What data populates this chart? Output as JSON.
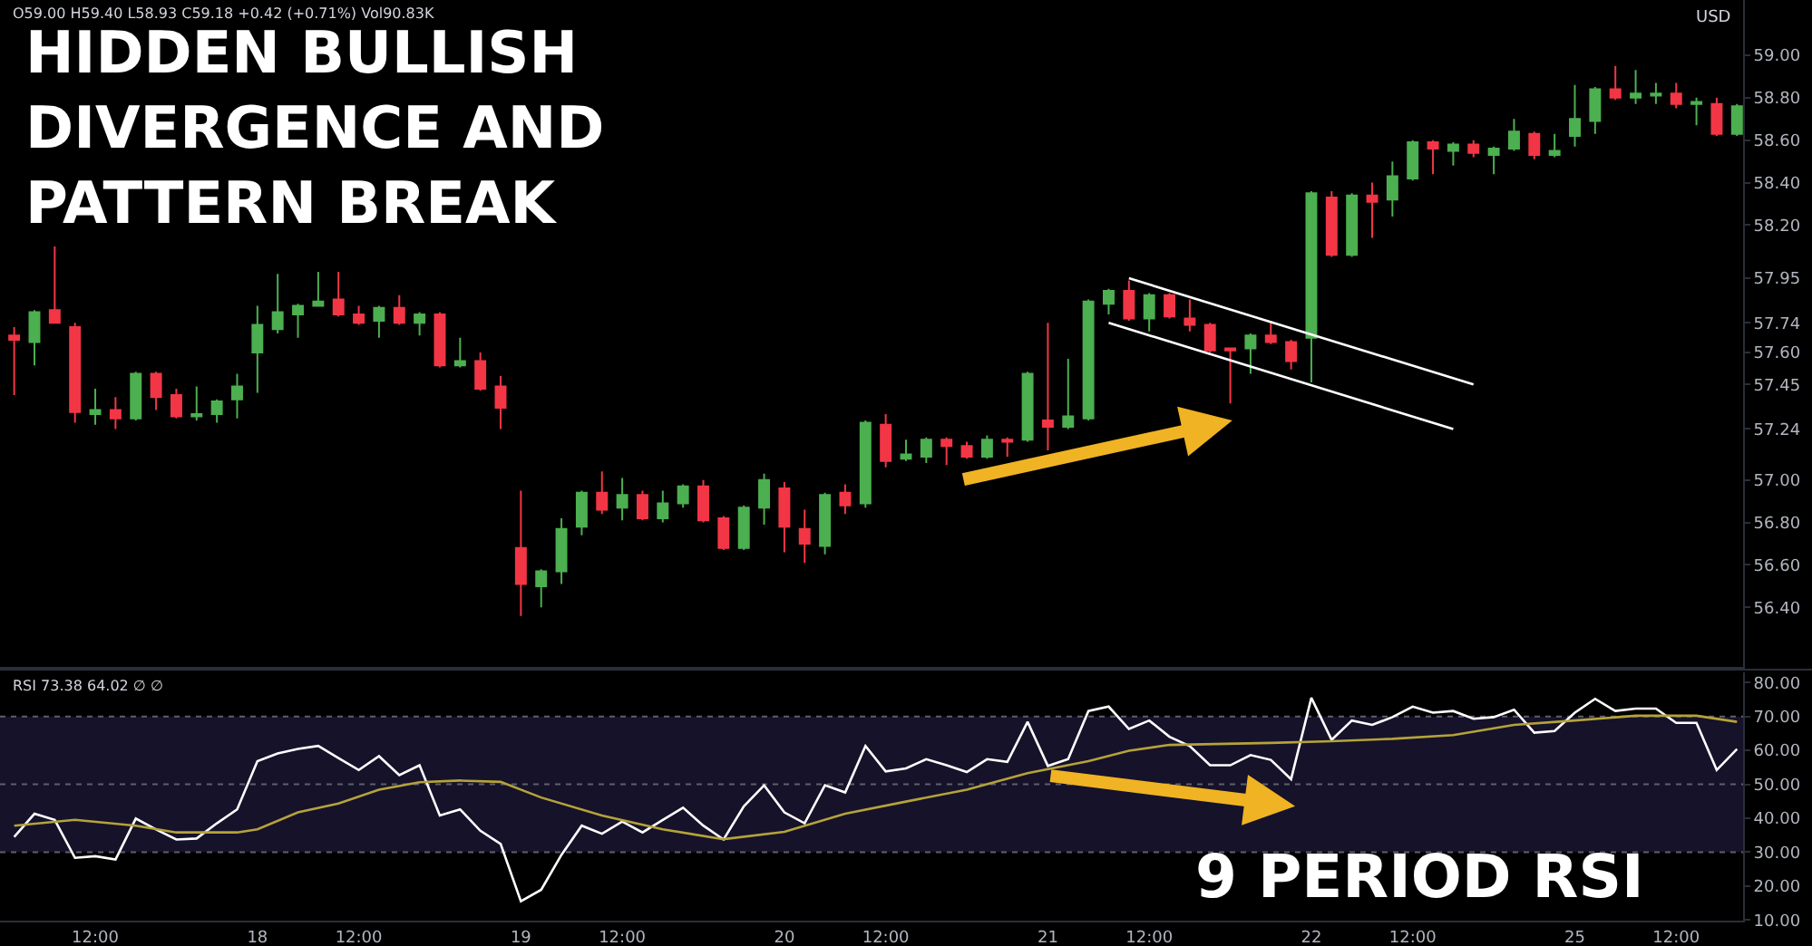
{
  "chart_data": [
    {
      "type": "candlestick",
      "title": "HIDDEN BULLISH\nDIVERGENCE AND\nPATTERN BREAK",
      "annotations": [
        "O59.00 H59.40 L58.93 C59.18 +0.42 (+0.71%) Vol90.83K",
        "USD"
      ],
      "categories": [
        null,
        null,
        null,
        null,
        null,
        null,
        null,
        null,
        null,
        null,
        null,
        null,
        null,
        null,
        null,
        null,
        null,
        null,
        null,
        null,
        null,
        null,
        null,
        null,
        null,
        null,
        null,
        null,
        null,
        null,
        null,
        null,
        null,
        null,
        null,
        null,
        null,
        null,
        null,
        null,
        null,
        null,
        null,
        null,
        null,
        null,
        null,
        null,
        null,
        null,
        null,
        null,
        null,
        null,
        null,
        null,
        null,
        null,
        null,
        null,
        null,
        null,
        null,
        null,
        null,
        null,
        null,
        null,
        null,
        null,
        null,
        null,
        null,
        null,
        null,
        null,
        null,
        null,
        null,
        null,
        null,
        null,
        null,
        null,
        null,
        null
      ],
      "colors": [
        "#f23645",
        "#4caf50",
        "#f23645",
        "#f23645",
        "#4caf50",
        "#f23645",
        "#4caf50",
        "#f23645",
        "#f23645",
        "#4caf50",
        "#4caf50",
        "#4caf50",
        "#4caf50",
        "#4caf50",
        "#4caf50",
        "#4caf50",
        "#f23645",
        "#f23645",
        "#4caf50",
        "#f23645",
        "#4caf50",
        "#f23645",
        "#4caf50",
        "#f23645",
        "#f23645",
        "#f23645",
        "#4caf50",
        "#4caf50",
        "#4caf50",
        "#f23645",
        "#4caf50",
        "#f23645",
        "#4caf50",
        "#4caf50",
        "#f23645",
        "#f23645",
        "#4caf50",
        "#4caf50",
        "#f23645",
        "#f23645",
        "#4caf50",
        "#f23645",
        "#4caf50",
        "#f23645",
        "#4caf50",
        "#4caf50",
        "#f23645",
        "#f23645",
        "#4caf50",
        "#f23645",
        "#4caf50",
        "#f23645",
        "#4caf50",
        "#4caf50",
        "#4caf50",
        "#f23645",
        "#4caf50",
        "#f23645",
        "#f23645",
        "#f23645",
        "#f23645",
        "#4caf50",
        "#f23645",
        "#f23645",
        "#4caf50",
        "#f23645",
        "#4caf50",
        "#f23645",
        "#4caf50",
        "#4caf50",
        "#f23645",
        "#4caf50",
        "#f23645",
        "#4caf50",
        "#4caf50",
        "#f23645",
        "#4caf50",
        "#4caf50",
        "#4caf50",
        "#f23645",
        "#4caf50",
        "#4caf50",
        "#f23645",
        "#4caf50",
        "#f23645",
        "#4caf50"
      ],
      "ohlc": [
        [
          57.68,
          57.72,
          57.4,
          57.66
        ],
        [
          57.65,
          57.8,
          57.54,
          57.79
        ],
        [
          57.8,
          58.1,
          57.74,
          57.74
        ],
        [
          57.72,
          57.74,
          57.27,
          57.32
        ],
        [
          57.31,
          57.43,
          57.26,
          57.33
        ],
        [
          57.33,
          57.39,
          57.24,
          57.29
        ],
        [
          57.29,
          57.51,
          57.28,
          57.5
        ],
        [
          57.5,
          57.51,
          57.33,
          57.39
        ],
        [
          57.4,
          57.43,
          57.29,
          57.3
        ],
        [
          57.3,
          57.44,
          57.28,
          57.31
        ],
        [
          57.31,
          57.38,
          57.27,
          57.37
        ],
        [
          57.38,
          57.5,
          57.29,
          57.44
        ],
        [
          57.6,
          57.82,
          57.41,
          57.73
        ],
        [
          57.71,
          57.97,
          57.69,
          57.79
        ],
        [
          57.78,
          57.83,
          57.67,
          57.82
        ],
        [
          57.82,
          57.98,
          57.82,
          57.84
        ],
        [
          57.85,
          57.98,
          57.77,
          57.78
        ],
        [
          57.78,
          57.82,
          57.73,
          57.74
        ],
        [
          57.75,
          57.82,
          57.67,
          57.81
        ],
        [
          57.81,
          57.87,
          57.73,
          57.74
        ],
        [
          57.74,
          57.79,
          57.68,
          57.78
        ],
        [
          57.78,
          57.79,
          57.53,
          57.54
        ],
        [
          57.54,
          57.67,
          57.53,
          57.56
        ],
        [
          57.56,
          57.6,
          57.42,
          57.43
        ],
        [
          57.44,
          57.49,
          57.24,
          57.34
        ],
        [
          56.68,
          56.95,
          56.36,
          56.51
        ],
        [
          56.5,
          56.58,
          56.4,
          56.57
        ],
        [
          56.57,
          56.82,
          56.51,
          56.77
        ],
        [
          56.78,
          56.95,
          56.74,
          56.94
        ],
        [
          56.94,
          57.04,
          56.84,
          56.86
        ],
        [
          56.87,
          57.01,
          56.81,
          56.93
        ],
        [
          56.93,
          56.95,
          56.81,
          56.82
        ],
        [
          56.82,
          56.95,
          56.8,
          56.89
        ],
        [
          56.89,
          56.98,
          56.87,
          56.97
        ],
        [
          56.97,
          57.0,
          56.8,
          56.81
        ],
        [
          56.82,
          56.83,
          56.67,
          56.68
        ],
        [
          56.68,
          56.88,
          56.67,
          56.87
        ],
        [
          56.87,
          57.03,
          56.79,
          57.0
        ],
        [
          56.96,
          56.99,
          56.66,
          56.78
        ],
        [
          56.77,
          56.86,
          56.61,
          56.7
        ],
        [
          56.69,
          56.94,
          56.65,
          56.93
        ],
        [
          56.94,
          56.98,
          56.84,
          56.88
        ],
        [
          56.89,
          57.28,
          56.87,
          57.27
        ],
        [
          57.26,
          57.31,
          57.06,
          57.09
        ],
        [
          57.1,
          57.19,
          57.09,
          57.12
        ],
        [
          57.11,
          57.2,
          57.08,
          57.19
        ],
        [
          57.19,
          57.2,
          57.07,
          57.16
        ],
        [
          57.16,
          57.18,
          57.1,
          57.11
        ],
        [
          57.11,
          57.21,
          57.1,
          57.19
        ],
        [
          57.19,
          57.2,
          57.11,
          57.18
        ],
        [
          57.19,
          57.51,
          57.18,
          57.5
        ],
        [
          57.28,
          57.74,
          57.14,
          57.25
        ],
        [
          57.25,
          57.57,
          57.24,
          57.3
        ],
        [
          57.29,
          57.85,
          57.28,
          57.84
        ],
        [
          57.83,
          57.9,
          57.78,
          57.89
        ],
        [
          57.89,
          57.94,
          57.75,
          57.76
        ],
        [
          57.76,
          57.88,
          57.7,
          57.87
        ],
        [
          57.87,
          57.88,
          57.76,
          57.77
        ],
        [
          57.76,
          57.85,
          57.7,
          57.73
        ],
        [
          57.73,
          57.74,
          57.6,
          57.61
        ],
        [
          57.62,
          57.62,
          57.36,
          57.61
        ],
        [
          57.62,
          57.69,
          57.5,
          57.68
        ],
        [
          57.68,
          57.74,
          57.64,
          57.65
        ],
        [
          57.65,
          57.66,
          57.52,
          57.56
        ],
        [
          57.67,
          58.36,
          57.46,
          58.35
        ],
        [
          58.33,
          58.36,
          58.05,
          58.06
        ],
        [
          58.06,
          58.35,
          58.05,
          58.34
        ],
        [
          58.34,
          58.4,
          58.14,
          58.31
        ],
        [
          58.32,
          58.5,
          58.24,
          58.43
        ],
        [
          58.42,
          58.6,
          58.41,
          58.59
        ],
        [
          58.59,
          58.6,
          58.44,
          58.56
        ],
        [
          58.55,
          58.59,
          58.48,
          58.58
        ],
        [
          58.58,
          58.6,
          58.52,
          58.54
        ],
        [
          58.53,
          58.57,
          58.44,
          58.56
        ],
        [
          58.56,
          58.7,
          58.55,
          58.64
        ],
        [
          58.63,
          58.64,
          58.51,
          58.53
        ],
        [
          58.53,
          58.63,
          58.52,
          58.55
        ],
        [
          58.62,
          58.86,
          58.57,
          58.7
        ],
        [
          58.69,
          58.85,
          58.63,
          58.84
        ],
        [
          58.84,
          58.95,
          58.79,
          58.8
        ],
        [
          58.8,
          58.93,
          58.77,
          58.82
        ],
        [
          58.81,
          58.87,
          58.77,
          58.82
        ],
        [
          58.82,
          58.87,
          58.75,
          58.77
        ],
        [
          58.77,
          58.8,
          58.67,
          58.78
        ],
        [
          58.77,
          58.8,
          58.62,
          58.63
        ],
        [
          58.63,
          58.77,
          58.62,
          58.76
        ]
      ],
      "series": [
        {
          "type": "line",
          "color": "#ffffff",
          "values": [
            null,
            null,
            null,
            null,
            null,
            null,
            null,
            null,
            null,
            null,
            null,
            null,
            null,
            null,
            null,
            null,
            null,
            null,
            null,
            null,
            null,
            null,
            null,
            null,
            null,
            null,
            null,
            null,
            null,
            null,
            null,
            null,
            null,
            null,
            null,
            null,
            null,
            null,
            null,
            null,
            null,
            null,
            null,
            null,
            null,
            null,
            null,
            null,
            null,
            null,
            null,
            null,
            null,
            null,
            null,
            57.95,
            null,
            null,
            null,
            null,
            null,
            null,
            null,
            null,
            null,
            null,
            null,
            null,
            null,
            null,
            null,
            null,
            57.45,
            null,
            null,
            null,
            null,
            null,
            null,
            null,
            null,
            null,
            null,
            null,
            null,
            null
          ]
        },
        {
          "type": "line",
          "color": "#ffffff",
          "values": [
            null,
            null,
            null,
            null,
            null,
            null,
            null,
            null,
            null,
            null,
            null,
            null,
            null,
            null,
            null,
            null,
            null,
            null,
            null,
            null,
            null,
            null,
            null,
            null,
            null,
            null,
            null,
            null,
            null,
            null,
            null,
            null,
            null,
            null,
            null,
            null,
            null,
            null,
            null,
            null,
            null,
            null,
            null,
            null,
            null,
            null,
            null,
            null,
            null,
            null,
            null,
            null,
            null,
            null,
            57.74,
            null,
            null,
            null,
            null,
            null,
            null,
            null,
            null,
            null,
            null,
            null,
            null,
            null,
            null,
            null,
            null,
            57.24,
            null,
            null,
            null,
            null,
            null,
            null,
            null,
            null,
            null,
            null,
            null,
            null,
            null,
            null
          ]
        }
      ],
      "ylim": [
        56.12,
        59.26
      ],
      "yticks": [
        {
          "value": 56.4,
          "label": "56.40"
        },
        {
          "value": 56.6,
          "label": "56.60"
        },
        {
          "value": 56.8,
          "label": "56.80"
        },
        {
          "value": 57.0,
          "label": "57.00"
        },
        {
          "value": 57.24,
          "label": "57.24"
        },
        {
          "value": 57.45,
          "label": "57.45"
        },
        {
          "value": 57.6,
          "label": "57.60"
        },
        {
          "value": 57.74,
          "label": "57.74"
        },
        {
          "value": 57.95,
          "label": "57.95"
        },
        {
          "value": 58.2,
          "label": "58.20"
        },
        {
          "value": 58.4,
          "label": "58.40"
        },
        {
          "value": 58.6,
          "label": "58.60"
        },
        {
          "value": 58.8,
          "label": "58.80"
        },
        {
          "value": 59.0,
          "label": "59.00"
        }
      ],
      "tick_labels": "y"
    },
    {
      "type": "line",
      "title": "9 PERIOD RSI",
      "annotations": [
        "RSI 73.38 64.02 ∅ ∅"
      ],
      "categories": [
        null,
        null,
        null,
        null,
        "12:00",
        null,
        null,
        null,
        null,
        null,
        null,
        null,
        "18",
        null,
        null,
        null,
        null,
        "12:00",
        null,
        null,
        null,
        null,
        null,
        null,
        null,
        "19",
        null,
        null,
        null,
        null,
        "12:00",
        null,
        null,
        null,
        null,
        null,
        null,
        null,
        "20",
        null,
        null,
        null,
        null,
        "12:00",
        null,
        null,
        null,
        null,
        null,
        null,
        null,
        "21",
        null,
        null,
        null,
        null,
        "12:00",
        null,
        null,
        null,
        null,
        null,
        null,
        null,
        "22",
        null,
        null,
        null,
        null,
        "12:00",
        null,
        null,
        null,
        null,
        null,
        null,
        null,
        "25",
        null,
        null,
        null,
        null,
        "12:00",
        null,
        null,
        null
      ],
      "series": [
        {
          "color": "#ffffff",
          "values": [
            34.5,
            41.3,
            39.5,
            28.3,
            28.8,
            27.8,
            39.9,
            36.7,
            33.7,
            34.0,
            38.5,
            42.6,
            56.8,
            59.1,
            60.4,
            61.3,
            57.7,
            54.2,
            58.3,
            52.7,
            55.6,
            40.8,
            42.6,
            36.3,
            32.4,
            15.5,
            18.9,
            29.2,
            37.8,
            35.4,
            39.0,
            35.8,
            39.5,
            43.1,
            37.8,
            33.7,
            43.5,
            49.7,
            41.7,
            38.5,
            49.7,
            47.6,
            61.3,
            53.8,
            54.7,
            57.4,
            55.6,
            53.6,
            57.4,
            56.6,
            68.4,
            55.4,
            57.4,
            71.6,
            72.9,
            66.3,
            68.8,
            64.0,
            61.3,
            55.6,
            55.6,
            58.6,
            57.2,
            51.5,
            75.5,
            63.1,
            68.8,
            67.5,
            69.8,
            72.9,
            71.1,
            71.6,
            69.3,
            69.8,
            72.0,
            65.2,
            65.7,
            71.1,
            75.2,
            71.6,
            72.3,
            72.3,
            68.1,
            68.1,
            54.2,
            60.4
          ]
        },
        {
          "color": "#b5a33a",
          "values": [
            37.8,
            null,
            null,
            39.5,
            null,
            null,
            37.8,
            null,
            35.8,
            null,
            null,
            35.8,
            36.7,
            null,
            41.7,
            null,
            44.3,
            null,
            48.4,
            null,
            50.6,
            null,
            51.1,
            null,
            50.7,
            null,
            46.1,
            null,
            null,
            40.8,
            null,
            null,
            36.7,
            null,
            null,
            33.8,
            null,
            null,
            36.0,
            null,
            null,
            41.3,
            null,
            null,
            44.9,
            null,
            null,
            48.4,
            null,
            null,
            53.3,
            null,
            null,
            56.8,
            null,
            59.9,
            null,
            61.6,
            null,
            null,
            null,
            null,
            62.2,
            null,
            null,
            62.7,
            null,
            null,
            63.4,
            null,
            null,
            64.5,
            null,
            null,
            67.5,
            null,
            null,
            68.8,
            null,
            null,
            70.2,
            null,
            null,
            70.2,
            null,
            68.4
          ]
        }
      ],
      "ylim": [
        9.8,
        83
      ],
      "yticks": [
        {
          "value": 10,
          "label": "10.00"
        },
        {
          "value": 20,
          "label": "20.00"
        },
        {
          "value": 30,
          "label": "30.00"
        },
        {
          "value": 40,
          "label": "40.00"
        },
        {
          "value": 50,
          "label": "50.00"
        },
        {
          "value": 60,
          "label": "60.00"
        },
        {
          "value": 70,
          "label": "70.00"
        },
        {
          "value": 80,
          "label": "80.00"
        }
      ],
      "bands": [
        {
          "axis": "y",
          "from": 30,
          "to": 70,
          "color": "#16122a"
        }
      ],
      "ref_lines": [
        {
          "axis": "y",
          "value": 70,
          "line_style": "dotted",
          "color": "#5d606b"
        },
        {
          "axis": "y",
          "value": 50,
          "line_style": "dotted",
          "color": "#5d606b"
        },
        {
          "axis": "y",
          "value": 30,
          "line_style": "dotted",
          "color": "#5d606b"
        }
      ],
      "marker": "none",
      "line_style": "solid"
    }
  ]
}
